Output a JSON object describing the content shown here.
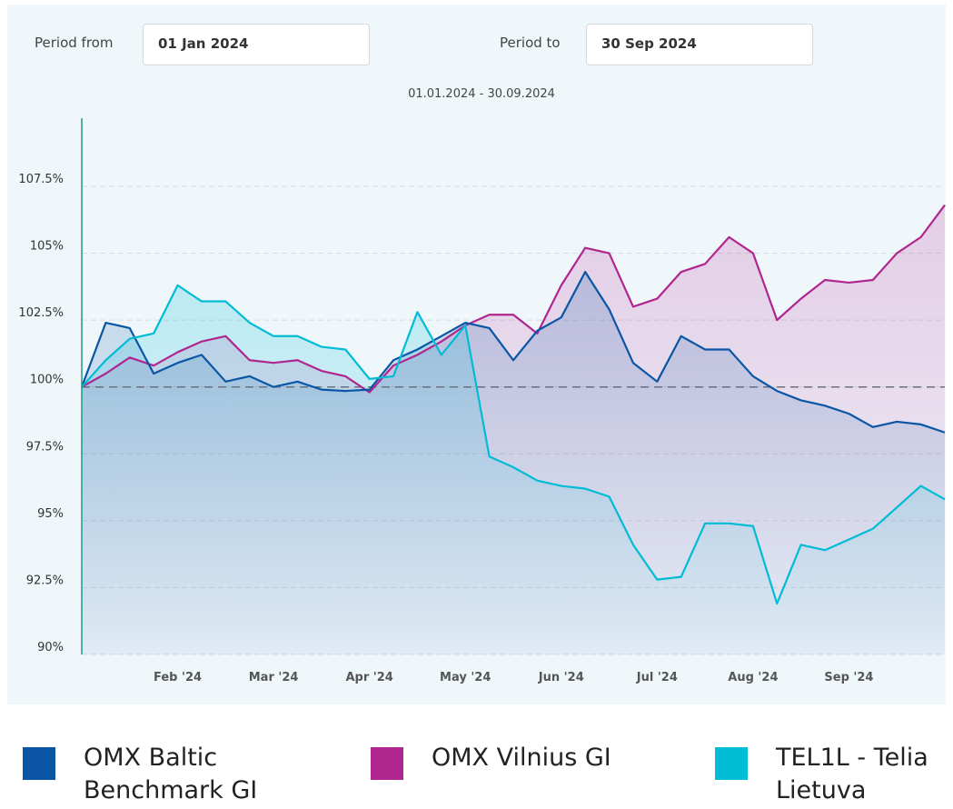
{
  "form": {
    "from_label": "Period from",
    "from_value": "01 Jan 2024",
    "to_label": "Period to",
    "to_value": "30 Sep 2024"
  },
  "chart_data": {
    "type": "line",
    "subtitle": "01.01.2024 - 30.09.2024",
    "categories": [
      null,
      null,
      null,
      null,
      "Feb '24",
      null,
      null,
      null,
      "Mar '24",
      null,
      null,
      null,
      "Apr '24",
      null,
      null,
      null,
      "May '24",
      null,
      null,
      null,
      "Jun '24",
      null,
      null,
      null,
      "Jul '24",
      null,
      null,
      null,
      "Aug '24",
      null,
      null,
      null,
      "Sep '24",
      null,
      null,
      null,
      null
    ],
    "series": [
      {
        "name": "OMX Baltic Benchmark GI",
        "color": "#0a56a5",
        "values": [
          100.0,
          102.4,
          102.2,
          100.5,
          100.9,
          101.2,
          100.2,
          100.4,
          100.0,
          100.2,
          99.9,
          99.85,
          99.9,
          101.0,
          101.4,
          101.9,
          102.4,
          102.2,
          101.0,
          102.1,
          102.6,
          104.3,
          102.9,
          100.9,
          100.2,
          101.9,
          101.4,
          101.4,
          100.4,
          99.85,
          99.5,
          99.3,
          99.0,
          98.5,
          98.7,
          98.6,
          98.3
        ]
      },
      {
        "name": "OMX Vilnius GI",
        "color": "#b0268f",
        "values": [
          100.0,
          100.5,
          101.1,
          100.8,
          101.3,
          101.7,
          101.9,
          101.0,
          100.9,
          101.0,
          100.6,
          100.4,
          99.8,
          100.8,
          101.2,
          101.7,
          102.3,
          102.7,
          102.7,
          102.0,
          103.8,
          105.2,
          105.0,
          103.0,
          103.3,
          104.3,
          104.6,
          105.6,
          105.0,
          102.5,
          103.3,
          104.0,
          103.9,
          104.0,
          105.0,
          105.6,
          106.8
        ]
      },
      {
        "name": "TEL1L - Telia Lietuva",
        "color": "#00bcd4",
        "values": [
          100.0,
          101.0,
          101.8,
          102.0,
          103.8,
          103.2,
          103.2,
          102.4,
          101.9,
          101.9,
          101.5,
          101.4,
          100.3,
          100.4,
          102.8,
          101.2,
          102.3,
          97.4,
          97.0,
          96.5,
          96.3,
          96.2,
          95.9,
          94.1,
          92.8,
          92.9,
          94.9,
          94.9,
          94.8,
          91.9,
          94.1,
          93.9,
          94.3,
          94.7,
          95.5,
          96.3,
          95.8
        ]
      }
    ],
    "ylim": [
      90,
      110
    ],
    "yticks": [
      {
        "value": 90,
        "label": "90%"
      },
      {
        "value": 92.5,
        "label": "92.5%"
      },
      {
        "value": 95,
        "label": "95%"
      },
      {
        "value": 97.5,
        "label": "97.5%"
      },
      {
        "value": 100,
        "label": "100%"
      },
      {
        "value": 102.5,
        "label": "102.5%"
      },
      {
        "value": 105,
        "label": "105%"
      },
      {
        "value": 107.5,
        "label": "107.5%"
      }
    ],
    "reference_line": 100,
    "grid": true
  }
}
